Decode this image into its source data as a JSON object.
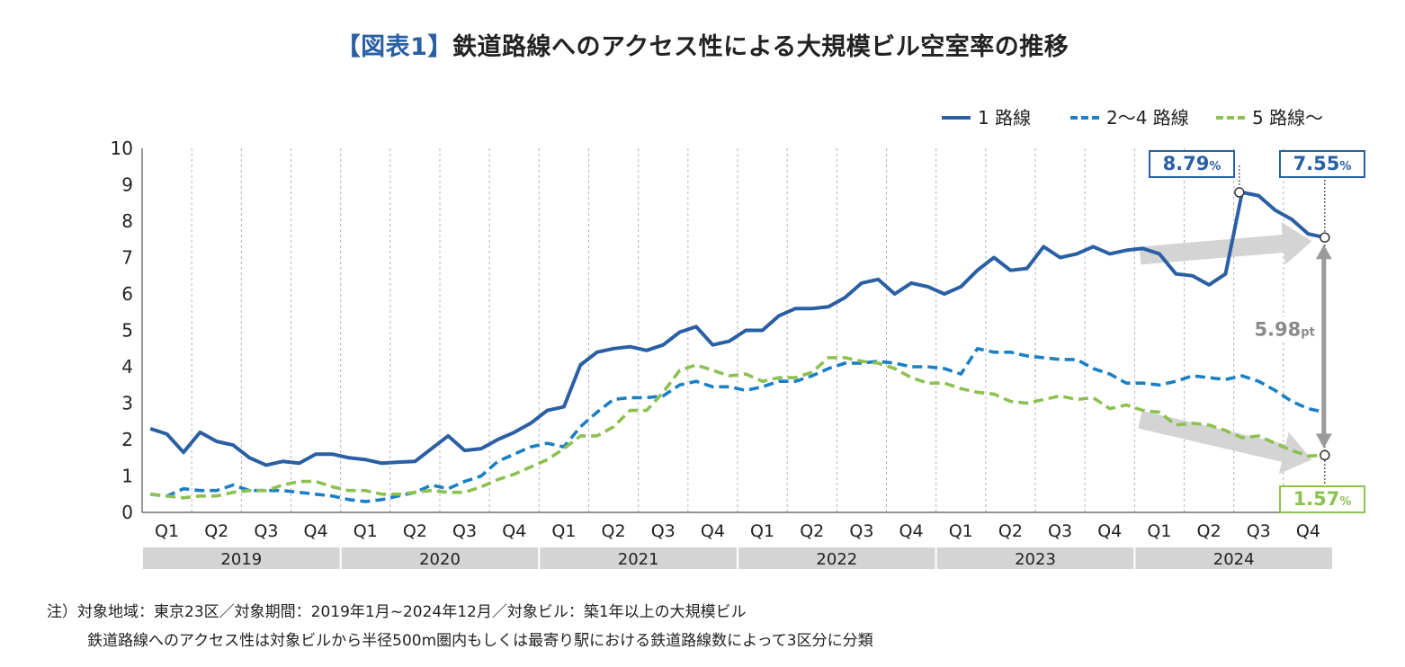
{
  "title": {
    "bracket_text": "【図表1】",
    "main_text": "鉄道路線へのアクセス性による大規模ビル空室率の推移"
  },
  "colors": {
    "series1": "#2a5fa3",
    "series2": "#1a7fc4",
    "series3": "#8cc151",
    "year_band": "#d4d4d4",
    "annotation_arrow": "#cfcfcf",
    "gap_arrow": "#9a9a9a"
  },
  "chart_data": {
    "type": "line",
    "title": "【図表1】鉄道路線へのアクセス性による大規模ビル空室率の推移",
    "ylim": [
      0,
      10
    ],
    "yticks": [
      "0",
      "1",
      "2",
      "3",
      "4",
      "5",
      "6",
      "7",
      "8",
      "9",
      "10"
    ],
    "quarter_labels": [
      "Q1",
      "Q2",
      "Q3",
      "Q4"
    ],
    "years": [
      "2019",
      "2020",
      "2021",
      "2022",
      "2023",
      "2024"
    ],
    "legend_position": "top-right",
    "series": [
      {
        "name": "1 路線",
        "style": "solid",
        "values": [
          2.3,
          2.15,
          1.65,
          2.2,
          1.95,
          1.85,
          1.5,
          1.3,
          1.4,
          1.35,
          1.6,
          1.6,
          1.5,
          1.45,
          1.35,
          1.38,
          1.4,
          1.75,
          2.1,
          1.7,
          1.75,
          2.0,
          2.2,
          2.45,
          2.8,
          2.9,
          4.05,
          4.4,
          4.5,
          4.55,
          4.45,
          4.6,
          4.95,
          5.1,
          4.6,
          4.7,
          5.0,
          5.0,
          5.4,
          5.6,
          5.6,
          5.65,
          5.9,
          6.3,
          6.4,
          6.0,
          6.3,
          6.2,
          6.0,
          6.2,
          6.65,
          7.0,
          6.65,
          6.7,
          7.3,
          7.0,
          7.1,
          7.3,
          7.1,
          7.2,
          7.25,
          7.1,
          6.55,
          6.5,
          6.25,
          6.55,
          8.79,
          8.7,
          8.3,
          8.05,
          7.65,
          7.55
        ]
      },
      {
        "name": "2〜4 路線",
        "style": "dashed",
        "values": [
          0.5,
          0.45,
          0.65,
          0.6,
          0.6,
          0.75,
          0.6,
          0.6,
          0.6,
          0.55,
          0.5,
          0.45,
          0.35,
          0.3,
          0.35,
          0.45,
          0.55,
          0.75,
          0.65,
          0.85,
          1.0,
          1.4,
          1.6,
          1.8,
          1.9,
          1.8,
          2.35,
          2.75,
          3.1,
          3.15,
          3.15,
          3.2,
          3.5,
          3.6,
          3.45,
          3.45,
          3.35,
          3.45,
          3.6,
          3.6,
          3.75,
          3.95,
          4.1,
          4.1,
          4.15,
          4.1,
          4.0,
          4.0,
          3.95,
          3.8,
          4.5,
          4.4,
          4.4,
          4.3,
          4.25,
          4.2,
          4.2,
          3.95,
          3.8,
          3.55,
          3.55,
          3.5,
          3.6,
          3.75,
          3.7,
          3.65,
          3.75,
          3.6,
          3.35,
          3.05,
          2.85,
          2.75
        ]
      },
      {
        "name": "5 路線〜",
        "style": "dashed",
        "values": [
          0.5,
          0.45,
          0.4,
          0.45,
          0.45,
          0.55,
          0.6,
          0.6,
          0.75,
          0.85,
          0.85,
          0.7,
          0.6,
          0.6,
          0.5,
          0.5,
          0.55,
          0.6,
          0.55,
          0.55,
          0.7,
          0.9,
          1.05,
          1.25,
          1.45,
          1.75,
          2.1,
          2.1,
          2.35,
          2.8,
          2.8,
          3.3,
          3.9,
          4.05,
          3.9,
          3.75,
          3.8,
          3.6,
          3.7,
          3.7,
          3.85,
          4.25,
          4.25,
          4.15,
          4.1,
          3.95,
          3.7,
          3.55,
          3.55,
          3.4,
          3.3,
          3.25,
          3.05,
          3.0,
          3.1,
          3.2,
          3.1,
          3.15,
          2.85,
          2.95,
          2.8,
          2.75,
          2.4,
          2.45,
          2.4,
          2.25,
          2.05,
          2.1,
          1.9,
          1.7,
          1.55,
          1.57
        ]
      }
    ],
    "annotations": {
      "peak_label": "8.79",
      "end1_label": "7.55",
      "end3_label": "1.57",
      "percent_unit": "%",
      "gap_value": "5.98",
      "gap_unit": "pt",
      "peak_index": 66
    }
  },
  "notes": {
    "line1": "注）対象地域：東京23区／対象期間：2019年1月~2024年12月／対象ビル：築1年以上の大規模ビル",
    "line2": "鉄道路線へのアクセス性は対象ビルから半径500m圏内もしくは最寄り駅における鉄道路線数によって3区分に分類"
  }
}
